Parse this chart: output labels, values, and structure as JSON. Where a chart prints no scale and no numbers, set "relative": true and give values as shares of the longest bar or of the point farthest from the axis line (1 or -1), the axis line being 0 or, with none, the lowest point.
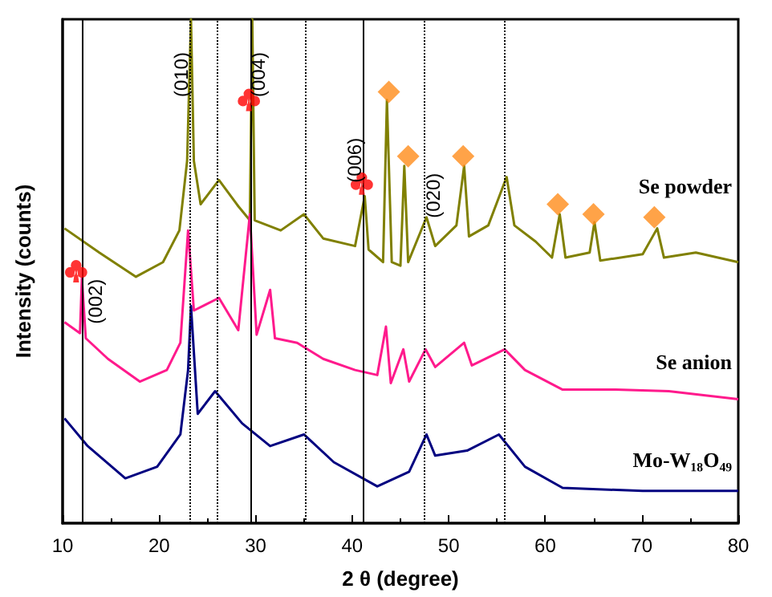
{
  "chart_data": {
    "type": "line",
    "relative": true,
    "xlabel": "2 θ (degree)",
    "ylabel": "Intensity (counts)",
    "xlim": [
      10,
      80
    ],
    "xticks": [
      10,
      20,
      30,
      40,
      50,
      60,
      70,
      80
    ],
    "tick_labels": "x",
    "grid": false,
    "marker": "none",
    "annotations": [
      "(002)",
      "(010)",
      "(004)",
      "(006)",
      "(020)"
    ],
    "series": [
      {
        "name": "Se powder",
        "color": "#808000",
        "x": [
          10.2,
          13.8,
          17.6,
          20.4,
          22.1,
          22.9,
          23.3,
          23.6,
          24.3,
          26.2,
          28.2,
          29.4,
          29.65,
          29.9,
          32.6,
          35.0,
          37.0,
          40.3,
          41.3,
          41.7,
          43.2,
          43.6,
          44.1,
          45.0,
          45.4,
          45.8,
          47.7,
          48.6,
          50.8,
          51.6,
          52.1,
          54.1,
          56.0,
          56.8,
          59.0,
          60.7,
          61.5,
          62.1,
          64.6,
          65.1,
          65.7,
          70.1,
          71.6,
          72.3,
          75.6,
          80
        ],
        "values": [
          0.585,
          0.537,
          0.489,
          0.518,
          0.581,
          0.719,
          1,
          0.719,
          0.633,
          0.681,
          0.629,
          0.601,
          1,
          0.601,
          0.581,
          0.613,
          0.565,
          0.55,
          0.649,
          0.543,
          0.518,
          0.84,
          0.518,
          0.511,
          0.709,
          0.518,
          0.607,
          0.55,
          0.591,
          0.709,
          0.569,
          0.591,
          0.687,
          0.591,
          0.559,
          0.527,
          0.613,
          0.527,
          0.537,
          0.597,
          0.521,
          0.534,
          0.585,
          0.527,
          0.537,
          0.518
        ]
      },
      {
        "name": "Se anion",
        "color": "#ff1a8c",
        "x": [
          10.2,
          11.8,
          12.0,
          12.4,
          14.7,
          18.0,
          20.8,
          22.2,
          23.0,
          23.6,
          26.2,
          28.2,
          29.4,
          30.1,
          31.5,
          32.0,
          34.3,
          37.0,
          40.3,
          42.6,
          43.5,
          44.0,
          45.3,
          45.9,
          47.6,
          48.6,
          51.6,
          52.4,
          55.8,
          57.9,
          61.8,
          67.3,
          72.8,
          80
        ],
        "values": [
          0.399,
          0.377,
          0.486,
          0.367,
          0.326,
          0.281,
          0.304,
          0.358,
          0.581,
          0.422,
          0.447,
          0.383,
          0.613,
          0.374,
          0.463,
          0.367,
          0.358,
          0.326,
          0.304,
          0.294,
          0.39,
          0.278,
          0.345,
          0.281,
          0.345,
          0.31,
          0.358,
          0.313,
          0.345,
          0.304,
          0.265,
          0.265,
          0.262,
          0.246
        ]
      },
      {
        "name": "Mo-W₁₈O₄₉",
        "color": "#000080",
        "x": [
          10.2,
          12.6,
          16.5,
          19.8,
          22.2,
          23.0,
          23.3,
          24.0,
          25.8,
          28.6,
          31.5,
          35.0,
          38.1,
          42.6,
          45.9,
          47.7,
          48.6,
          51.9,
          55.2,
          57.9,
          61.8,
          70.1,
          80
        ],
        "values": [
          0.208,
          0.153,
          0.089,
          0.112,
          0.176,
          0.304,
          0.431,
          0.217,
          0.262,
          0.198,
          0.153,
          0.176,
          0.121,
          0.073,
          0.102,
          0.176,
          0.134,
          0.144,
          0.176,
          0.112,
          0.07,
          0.064,
          0.064
        ]
      },
      {
        "type": "scatter",
        "color": "#ff0000",
        "x": [
          11.4,
          29.3,
          41.0
        ],
        "values": [
          0.5,
          0.84,
          0.674
        ]
      },
      {
        "type": "scatter",
        "marker": "diamond",
        "color": "#ff8c1a",
        "x": [
          43.8,
          45.8,
          51.5,
          61.3,
          65.0,
          71.3
        ],
        "values": [
          0.856,
          0.728,
          0.728,
          0.633,
          0.613,
          0.607
        ]
      }
    ],
    "ref_lines": [
      {
        "axis": "x",
        "value": 12.0,
        "color": "#000000",
        "line_style": "solid"
      },
      {
        "axis": "x",
        "value": 23.1,
        "color": "#000000",
        "line_style": "dotted"
      },
      {
        "axis": "x",
        "value": 26.0,
        "color": "#000000",
        "line_style": "dotted"
      },
      {
        "axis": "x",
        "value": 29.5,
        "color": "#000000",
        "line_style": "solid"
      },
      {
        "axis": "x",
        "value": 35.1,
        "color": "#000000",
        "line_style": "dotted"
      },
      {
        "axis": "x",
        "value": 41.2,
        "color": "#000000",
        "line_style": "solid"
      },
      {
        "axis": "x",
        "value": 47.5,
        "color": "#000000",
        "line_style": "dotted"
      },
      {
        "axis": "x",
        "value": 55.8,
        "color": "#000000",
        "line_style": "dotted"
      }
    ]
  }
}
